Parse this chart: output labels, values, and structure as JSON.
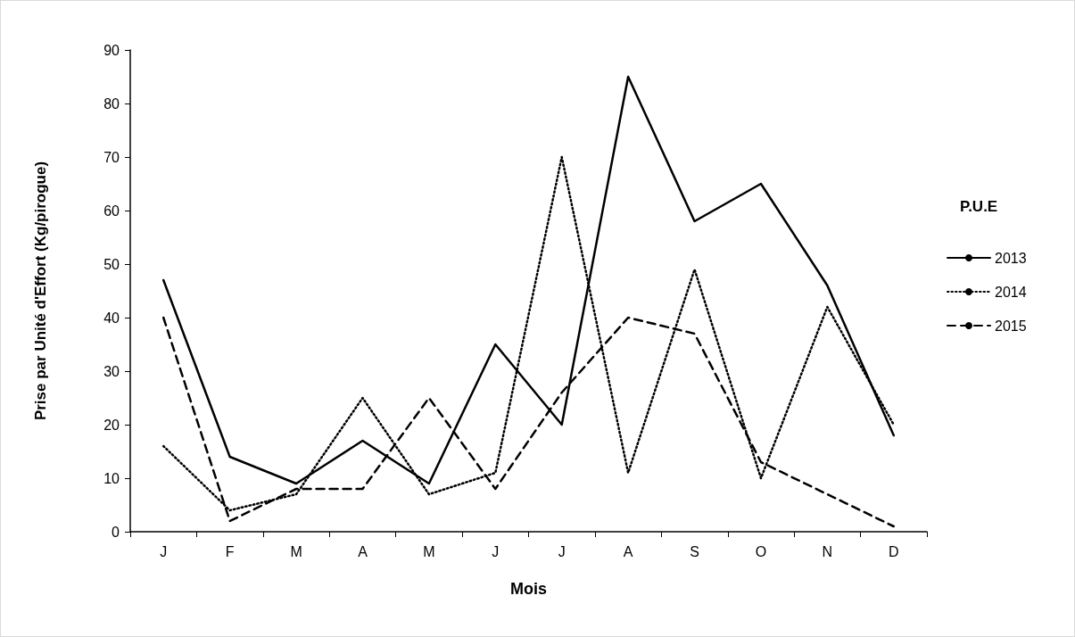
{
  "chart_data": {
    "type": "line",
    "xlabel": "Mois",
    "ylabel": "Prise par Unité d'Effort (Kg/pirogue)",
    "legend_title": "P.U.E",
    "categories": [
      "J",
      "F",
      "M",
      "A",
      "M",
      "J",
      "J",
      "A",
      "S",
      "O",
      "N",
      "D"
    ],
    "series": [
      {
        "name": "2013",
        "color": "#000000",
        "line_style": "solid",
        "values": [
          47,
          14,
          9,
          17,
          9,
          35,
          20,
          85,
          58,
          65,
          46,
          18
        ]
      },
      {
        "name": "2014",
        "color": "#000000",
        "line_style": "dotted",
        "values": [
          16,
          4,
          7,
          25,
          7,
          11,
          70,
          11,
          49,
          10,
          42,
          20
        ]
      },
      {
        "name": "2015",
        "color": "#000000",
        "line_style": "dashed",
        "values": [
          40,
          2,
          8,
          8,
          25,
          8,
          26,
          40,
          37,
          13,
          7,
          1
        ]
      }
    ],
    "ylim": [
      0,
      90
    ],
    "yticks": [
      0,
      10,
      20,
      30,
      40,
      50,
      60,
      70,
      80,
      90
    ],
    "grid": false,
    "legend": "right",
    "marker": "none"
  }
}
